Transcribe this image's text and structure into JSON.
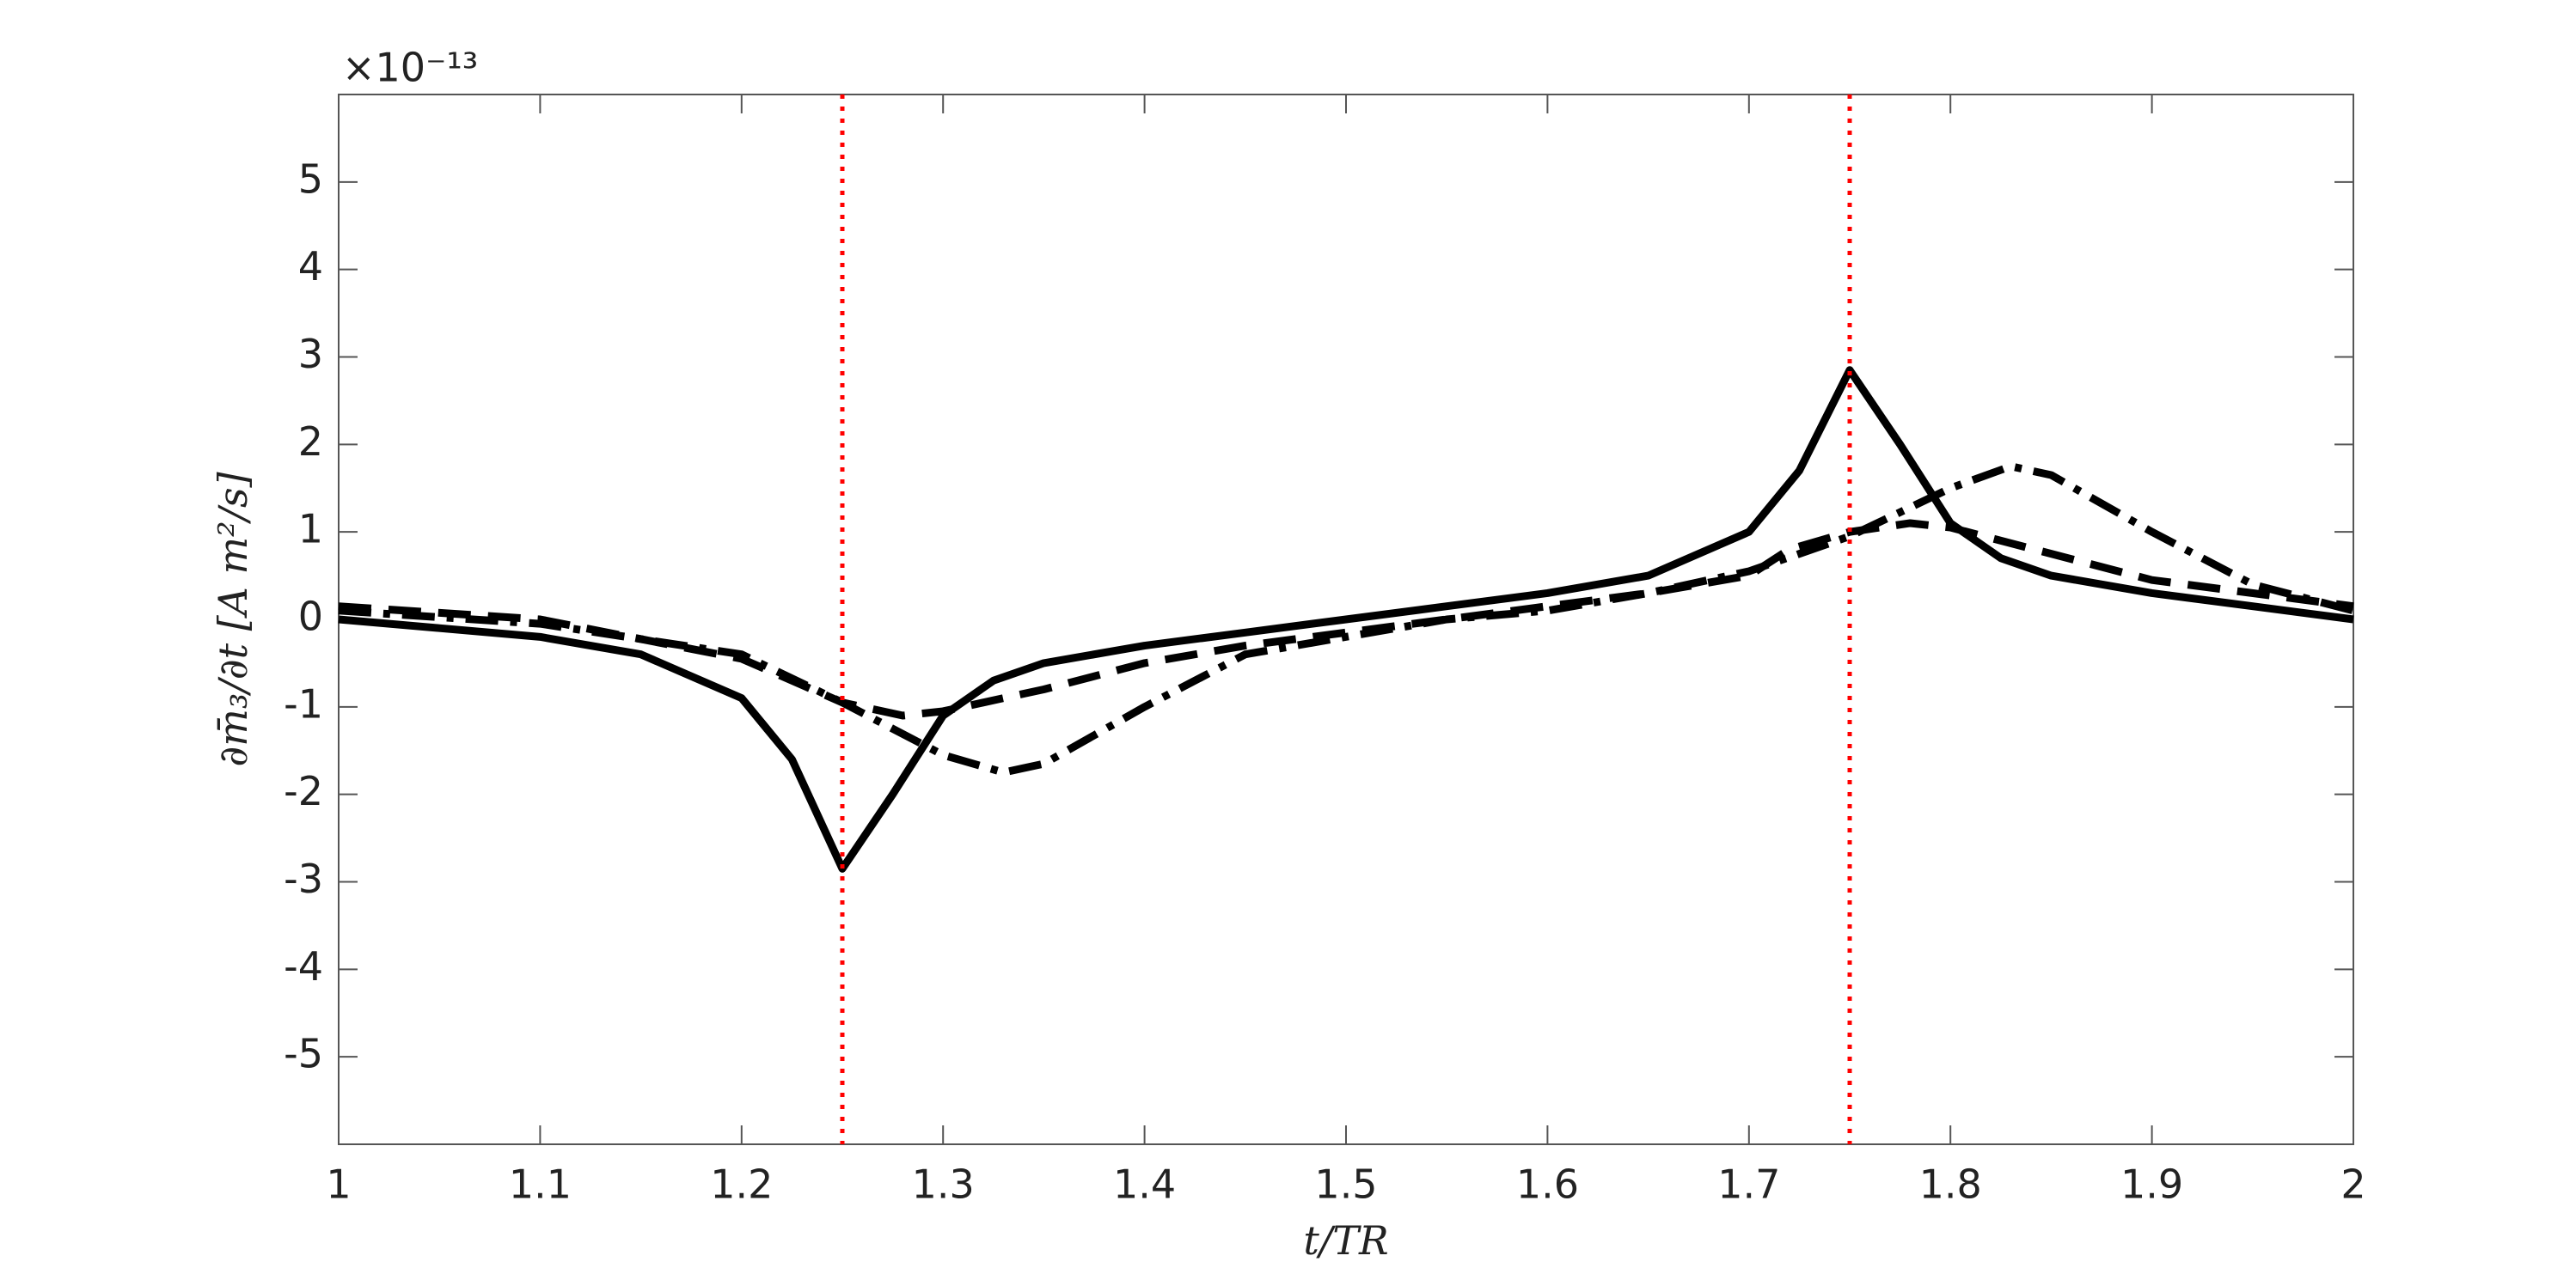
{
  "chart_data": {
    "type": "line",
    "xlabel": "t/TR",
    "ylabel": "∂m̄₃/∂t [A m²/s]",
    "y_exponent": "×10⁻¹³",
    "xlim": [
      1,
      2
    ],
    "xticks": [
      1,
      1.1,
      1.2,
      1.3,
      1.4,
      1.5,
      1.6,
      1.7,
      1.8,
      1.9,
      2
    ],
    "ylim": [
      -6,
      6
    ],
    "yticks": [
      -5,
      -4,
      -3,
      -2,
      -1,
      0,
      1,
      2,
      3,
      4,
      5
    ],
    "vlines": [
      1.25,
      1.75
    ],
    "vline_color": "#ff0000",
    "series": [
      {
        "color": "#000000",
        "dash": "solid",
        "x": [
          1,
          1.05,
          1.1,
          1.15,
          1.2,
          1.225,
          1.25,
          1.275,
          1.3,
          1.325,
          1.35,
          1.4,
          1.45,
          1.5,
          1.55,
          1.6,
          1.65,
          1.7,
          1.725,
          1.75,
          1.775,
          1.8,
          1.825,
          1.85,
          1.9,
          1.95,
          2
        ],
        "values": [
          0,
          -0.1,
          -0.2,
          -0.4,
          -0.9,
          -1.6,
          -2.85,
          -2.0,
          -1.1,
          -0.7,
          -0.5,
          -0.3,
          -0.15,
          0,
          0.15,
          0.3,
          0.5,
          1.0,
          1.7,
          2.85,
          2.0,
          1.1,
          0.7,
          0.5,
          0.3,
          0.15,
          0
        ]
      },
      {
        "color": "#000000",
        "dash": "dashed",
        "x": [
          1,
          1.1,
          1.2,
          1.25,
          1.28,
          1.3,
          1.35,
          1.4,
          1.45,
          1.5,
          1.55,
          1.6,
          1.65,
          1.7,
          1.72,
          1.75,
          1.78,
          1.8,
          1.85,
          1.9,
          2
        ],
        "values": [
          0.15,
          0,
          -0.45,
          -0.95,
          -1.1,
          -1.05,
          -0.8,
          -0.5,
          -0.3,
          -0.15,
          0,
          0.15,
          0.3,
          0.5,
          0.8,
          1.0,
          1.1,
          1.05,
          0.75,
          0.45,
          0.15
        ]
      },
      {
        "color": "#000000",
        "dash": "dashdot",
        "x": [
          1,
          1.1,
          1.2,
          1.25,
          1.3,
          1.33,
          1.35,
          1.4,
          1.45,
          1.5,
          1.55,
          1.6,
          1.65,
          1.7,
          1.75,
          1.8,
          1.83,
          1.85,
          1.9,
          1.95,
          2
        ],
        "values": [
          0.1,
          -0.05,
          -0.4,
          -0.95,
          -1.55,
          -1.75,
          -1.65,
          -1.0,
          -0.4,
          -0.2,
          0,
          0.1,
          0.3,
          0.55,
          0.95,
          1.5,
          1.75,
          1.65,
          1.0,
          0.4,
          0.1
        ]
      }
    ]
  }
}
